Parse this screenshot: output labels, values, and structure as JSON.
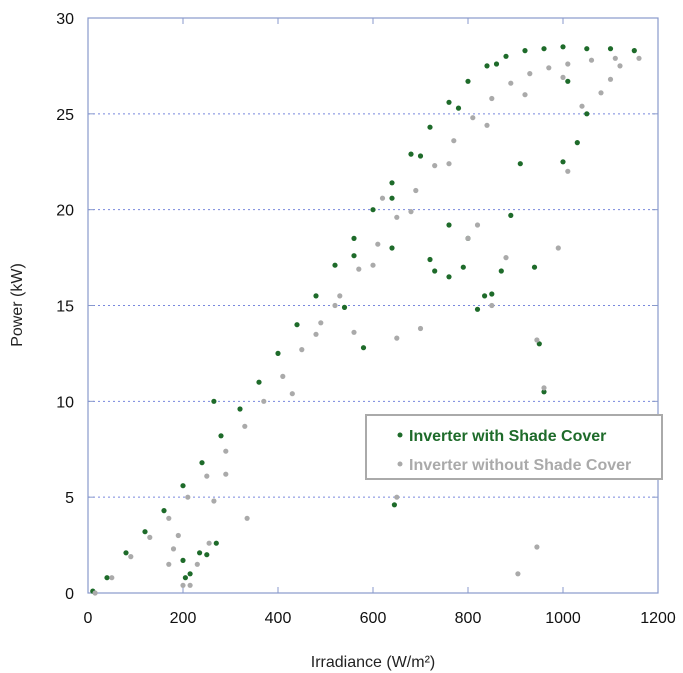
{
  "chart_data": {
    "type": "scatter",
    "title": "",
    "xlabel": "Irradiance (W/m²)",
    "ylabel": "Power (kW)",
    "xlim": [
      0,
      1200
    ],
    "ylim": [
      0,
      30
    ],
    "xticks": [
      0,
      200,
      400,
      600,
      800,
      1000,
      1200
    ],
    "yticks": [
      0,
      5,
      10,
      15,
      20,
      25,
      30
    ],
    "xtick_labels": [
      "0",
      "200",
      "400",
      "600",
      "800",
      "1000",
      "1200"
    ],
    "ytick_labels": [
      "0",
      "5",
      "10",
      "15",
      "20",
      "25",
      "30"
    ],
    "grid": "horizontal dotted",
    "legend_position": "right-middle",
    "series": [
      {
        "name": "Inverter with Shade Cover",
        "color": "#1e6b2a",
        "points": [
          [
            10,
            0.1
          ],
          [
            40,
            0.8
          ],
          [
            80,
            2.1
          ],
          [
            120,
            3.2
          ],
          [
            160,
            4.3
          ],
          [
            200,
            5.6
          ],
          [
            240,
            6.8
          ],
          [
            280,
            8.2
          ],
          [
            320,
            9.6
          ],
          [
            360,
            11.0
          ],
          [
            400,
            12.5
          ],
          [
            440,
            14.0
          ],
          [
            480,
            15.5
          ],
          [
            520,
            17.1
          ],
          [
            560,
            18.5
          ],
          [
            600,
            20.0
          ],
          [
            640,
            21.4
          ],
          [
            680,
            22.9
          ],
          [
            720,
            24.3
          ],
          [
            760,
            25.6
          ],
          [
            800,
            26.7
          ],
          [
            840,
            27.5
          ],
          [
            880,
            28.0
          ],
          [
            920,
            28.3
          ],
          [
            960,
            28.4
          ],
          [
            1000,
            28.5
          ],
          [
            1050,
            28.4
          ],
          [
            1100,
            28.4
          ],
          [
            1150,
            28.3
          ],
          [
            560,
            17.6
          ],
          [
            640,
            20.6
          ],
          [
            700,
            22.8
          ],
          [
            780,
            25.3
          ],
          [
            860,
            27.6
          ],
          [
            200,
            1.7
          ],
          [
            205,
            0.8
          ],
          [
            215,
            1.0
          ],
          [
            235,
            2.1
          ],
          [
            250,
            2.0
          ],
          [
            270,
            2.6
          ],
          [
            265,
            10.0
          ],
          [
            640,
            18.0
          ],
          [
            645,
            4.6
          ],
          [
            720,
            17.4
          ],
          [
            730,
            16.8
          ],
          [
            760,
            16.5
          ],
          [
            790,
            17.0
          ],
          [
            800,
            18.5
          ],
          [
            820,
            14.8
          ],
          [
            835,
            15.5
          ],
          [
            850,
            15.6
          ],
          [
            870,
            16.8
          ],
          [
            940,
            17.0
          ],
          [
            910,
            22.4
          ],
          [
            1000,
            22.5
          ],
          [
            960,
            10.5
          ],
          [
            950,
            13.0
          ],
          [
            580,
            12.8
          ],
          [
            540,
            14.9
          ],
          [
            760,
            19.2
          ],
          [
            890,
            19.7
          ],
          [
            1010,
            26.7
          ],
          [
            1050,
            25.0
          ],
          [
            1030,
            23.5
          ]
        ]
      },
      {
        "name": "Inverter without Shade Cover",
        "color": "#aaaaaa",
        "points": [
          [
            15,
            0.0
          ],
          [
            50,
            0.8
          ],
          [
            90,
            1.9
          ],
          [
            130,
            2.9
          ],
          [
            170,
            3.9
          ],
          [
            210,
            5.0
          ],
          [
            250,
            6.1
          ],
          [
            290,
            7.4
          ],
          [
            330,
            8.7
          ],
          [
            370,
            10.0
          ],
          [
            410,
            11.3
          ],
          [
            450,
            12.7
          ],
          [
            490,
            14.1
          ],
          [
            530,
            15.5
          ],
          [
            570,
            16.9
          ],
          [
            610,
            18.2
          ],
          [
            650,
            19.6
          ],
          [
            690,
            21.0
          ],
          [
            730,
            22.3
          ],
          [
            770,
            23.6
          ],
          [
            810,
            24.8
          ],
          [
            850,
            25.8
          ],
          [
            890,
            26.6
          ],
          [
            930,
            27.1
          ],
          [
            970,
            27.4
          ],
          [
            1010,
            27.6
          ],
          [
            1060,
            27.8
          ],
          [
            1110,
            27.9
          ],
          [
            1160,
            27.9
          ],
          [
            600,
            17.1
          ],
          [
            680,
            19.9
          ],
          [
            760,
            22.4
          ],
          [
            840,
            24.4
          ],
          [
            920,
            26.0
          ],
          [
            1000,
            26.9
          ],
          [
            170,
            1.5
          ],
          [
            180,
            2.3
          ],
          [
            190,
            3.0
          ],
          [
            200,
            0.4
          ],
          [
            215,
            0.4
          ],
          [
            230,
            1.5
          ],
          [
            255,
            2.6
          ],
          [
            265,
            4.8
          ],
          [
            290,
            6.2
          ],
          [
            335,
            3.9
          ],
          [
            650,
            5.0
          ],
          [
            650,
            13.3
          ],
          [
            700,
            13.8
          ],
          [
            800,
            18.5
          ],
          [
            820,
            19.2
          ],
          [
            850,
            15.0
          ],
          [
            880,
            17.5
          ],
          [
            905,
            1.0
          ],
          [
            945,
            2.4
          ],
          [
            945,
            13.2
          ],
          [
            960,
            10.7
          ],
          [
            990,
            18.0
          ],
          [
            1010,
            22.0
          ],
          [
            1040,
            25.4
          ],
          [
            1080,
            26.1
          ],
          [
            1100,
            26.8
          ],
          [
            1120,
            27.5
          ],
          [
            560,
            13.6
          ],
          [
            620,
            20.6
          ],
          [
            430,
            10.4
          ],
          [
            480,
            13.5
          ],
          [
            520,
            15.0
          ]
        ]
      }
    ]
  }
}
